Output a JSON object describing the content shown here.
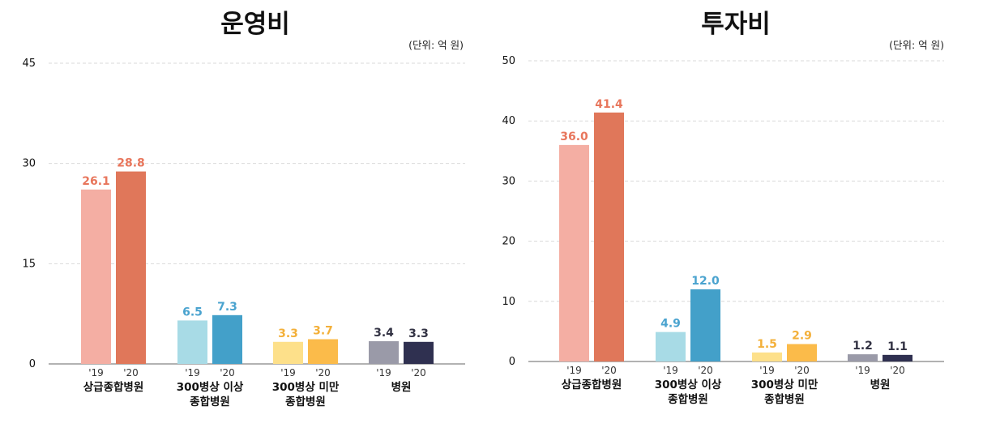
{
  "chart_data": [
    {
      "type": "bar",
      "title": "운영비",
      "unit": "(단위: 억 원)",
      "ylim": [
        0,
        45
      ],
      "yticks": [
        0,
        15,
        30,
        45
      ],
      "grid": true,
      "years": [
        "'19",
        "'20"
      ],
      "categories": [
        {
          "label": [
            "상급종합병원"
          ],
          "values": [
            26.1,
            28.8
          ],
          "value_labels": [
            "26.1",
            "28.8"
          ]
        },
        {
          "label": [
            "300병상 이상",
            "종합병원"
          ],
          "values": [
            6.5,
            7.3
          ],
          "value_labels": [
            "6.5",
            "7.3"
          ]
        },
        {
          "label": [
            "300병상 미만",
            "종합병원"
          ],
          "values": [
            3.3,
            3.7
          ],
          "value_labels": [
            "3.3",
            "3.7"
          ]
        },
        {
          "label": [
            "병원"
          ],
          "values": [
            3.4,
            3.3
          ],
          "value_labels": [
            "3.4",
            "3.3"
          ]
        }
      ]
    },
    {
      "type": "bar",
      "title": "투자비",
      "unit": "(단위: 억 원)",
      "ylim": [
        0,
        50
      ],
      "yticks": [
        0,
        10,
        20,
        30,
        40,
        50
      ],
      "grid": true,
      "years": [
        "'19",
        "'20"
      ],
      "categories": [
        {
          "label": [
            "상급종합병원"
          ],
          "values": [
            36.0,
            41.4
          ],
          "value_labels": [
            "36.0",
            "41.4"
          ]
        },
        {
          "label": [
            "300병상 이상",
            "종합병원"
          ],
          "values": [
            4.9,
            12.0
          ],
          "value_labels": [
            "4.9",
            "12.0"
          ]
        },
        {
          "label": [
            "300병상 미만",
            "종합병원"
          ],
          "values": [
            1.5,
            2.9
          ],
          "value_labels": [
            "1.5",
            "2.9"
          ]
        },
        {
          "label": [
            "병원"
          ],
          "values": [
            1.2,
            1.1
          ],
          "value_labels": [
            "1.2",
            "1.1"
          ]
        }
      ]
    }
  ],
  "colors": {
    "categories": [
      {
        "bar_2019": "#f4aea3",
        "bar_2020": "#e0775a",
        "label": "#e8765c"
      },
      {
        "bar_2019": "#a8dbe6",
        "bar_2020": "#43a0c9",
        "label": "#4aa3cf"
      },
      {
        "bar_2019": "#fde08a",
        "bar_2020": "#fbbb4a",
        "label": "#f3b03a"
      },
      {
        "bar_2019": "#9a9aa8",
        "bar_2020": "#2f3050",
        "label": "#333344"
      }
    ]
  }
}
